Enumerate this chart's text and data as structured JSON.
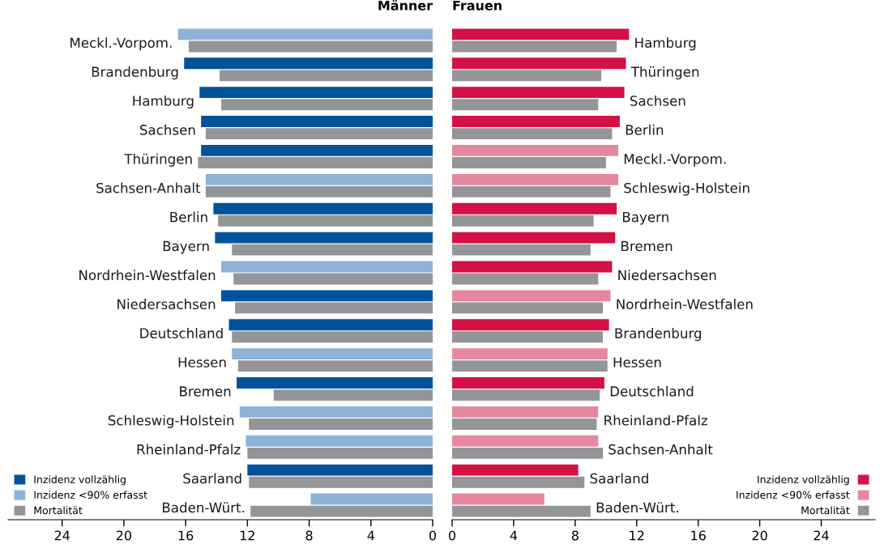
{
  "chart_data": [
    {
      "type": "bar",
      "orientation": "horizontal",
      "title": "Männer",
      "categories": [
        "Meckl.-Vorpom.",
        "Brandenburg",
        "Hamburg",
        "Sachsen",
        "Thüringen",
        "Sachsen-Anhalt",
        "Berlin",
        "Bayern",
        "Nordrhein-Westfalen",
        "Niedersachsen",
        "Deutschland",
        "Hessen",
        "Bremen",
        "Schleswig-Holstein",
        "Rheinland-Pfalz",
        "Saarland",
        "Baden-Würt."
      ],
      "series": [
        {
          "name": "Inzidenz vollzählig",
          "color": "#00539b",
          "values": [
            null,
            16.1,
            15.1,
            15.0,
            15.0,
            null,
            14.2,
            14.1,
            null,
            13.7,
            13.2,
            null,
            12.7,
            null,
            null,
            12.0,
            null
          ]
        },
        {
          "name": "Inzidenz <90% erfasst",
          "color": "#8db3d6",
          "values": [
            16.5,
            null,
            null,
            null,
            null,
            14.7,
            null,
            null,
            13.7,
            null,
            null,
            13.0,
            null,
            12.5,
            12.1,
            null,
            7.9
          ]
        },
        {
          "name": "Mortalität",
          "color": "#939598",
          "values": [
            15.8,
            13.8,
            13.7,
            14.7,
            15.2,
            14.7,
            13.9,
            13.0,
            12.9,
            12.8,
            13.0,
            12.6,
            10.3,
            11.9,
            12.0,
            11.9,
            11.8
          ]
        }
      ],
      "xlim": [
        27.5,
        0
      ],
      "xticks": [
        24,
        20,
        16,
        12,
        8,
        4,
        0
      ],
      "grid": false,
      "legend": "bottom left"
    },
    {
      "type": "bar",
      "orientation": "horizontal",
      "title": "Frauen",
      "categories": [
        "Hamburg",
        "Thüringen",
        "Sachsen",
        "Berlin",
        "Meckl.-Vorpom.",
        "Schleswig-Holstein",
        "Bayern",
        "Bremen",
        "Niedersachsen",
        "Nordrhein-Westfalen",
        "Brandenburg",
        "Hessen",
        "Deutschland",
        "Rheinland-Pfalz",
        "Sachsen-Anhalt",
        "Saarland",
        "Baden-Würt."
      ],
      "series": [
        {
          "name": "Inzidenz vollzählig",
          "color": "#d31145",
          "values": [
            11.5,
            11.3,
            11.2,
            10.9,
            null,
            null,
            10.7,
            10.6,
            10.4,
            null,
            10.2,
            null,
            9.9,
            null,
            null,
            8.2,
            null
          ]
        },
        {
          "name": "Inzidenz <90% erfasst",
          "color": "#e687a0",
          "values": [
            null,
            null,
            null,
            null,
            10.8,
            10.8,
            null,
            null,
            null,
            10.3,
            null,
            10.1,
            null,
            9.5,
            9.5,
            null,
            6.0
          ]
        },
        {
          "name": "Mortalität",
          "color": "#939598",
          "values": [
            10.7,
            9.7,
            9.5,
            10.4,
            10.0,
            10.3,
            9.2,
            9.0,
            9.5,
            9.8,
            9.8,
            10.1,
            9.6,
            9.4,
            9.8,
            8.6,
            9.0
          ]
        }
      ],
      "xlim": [
        0,
        27.5
      ],
      "xticks": [
        0,
        4,
        8,
        12,
        16,
        20,
        24
      ],
      "grid": false,
      "legend": "bottom right"
    }
  ]
}
